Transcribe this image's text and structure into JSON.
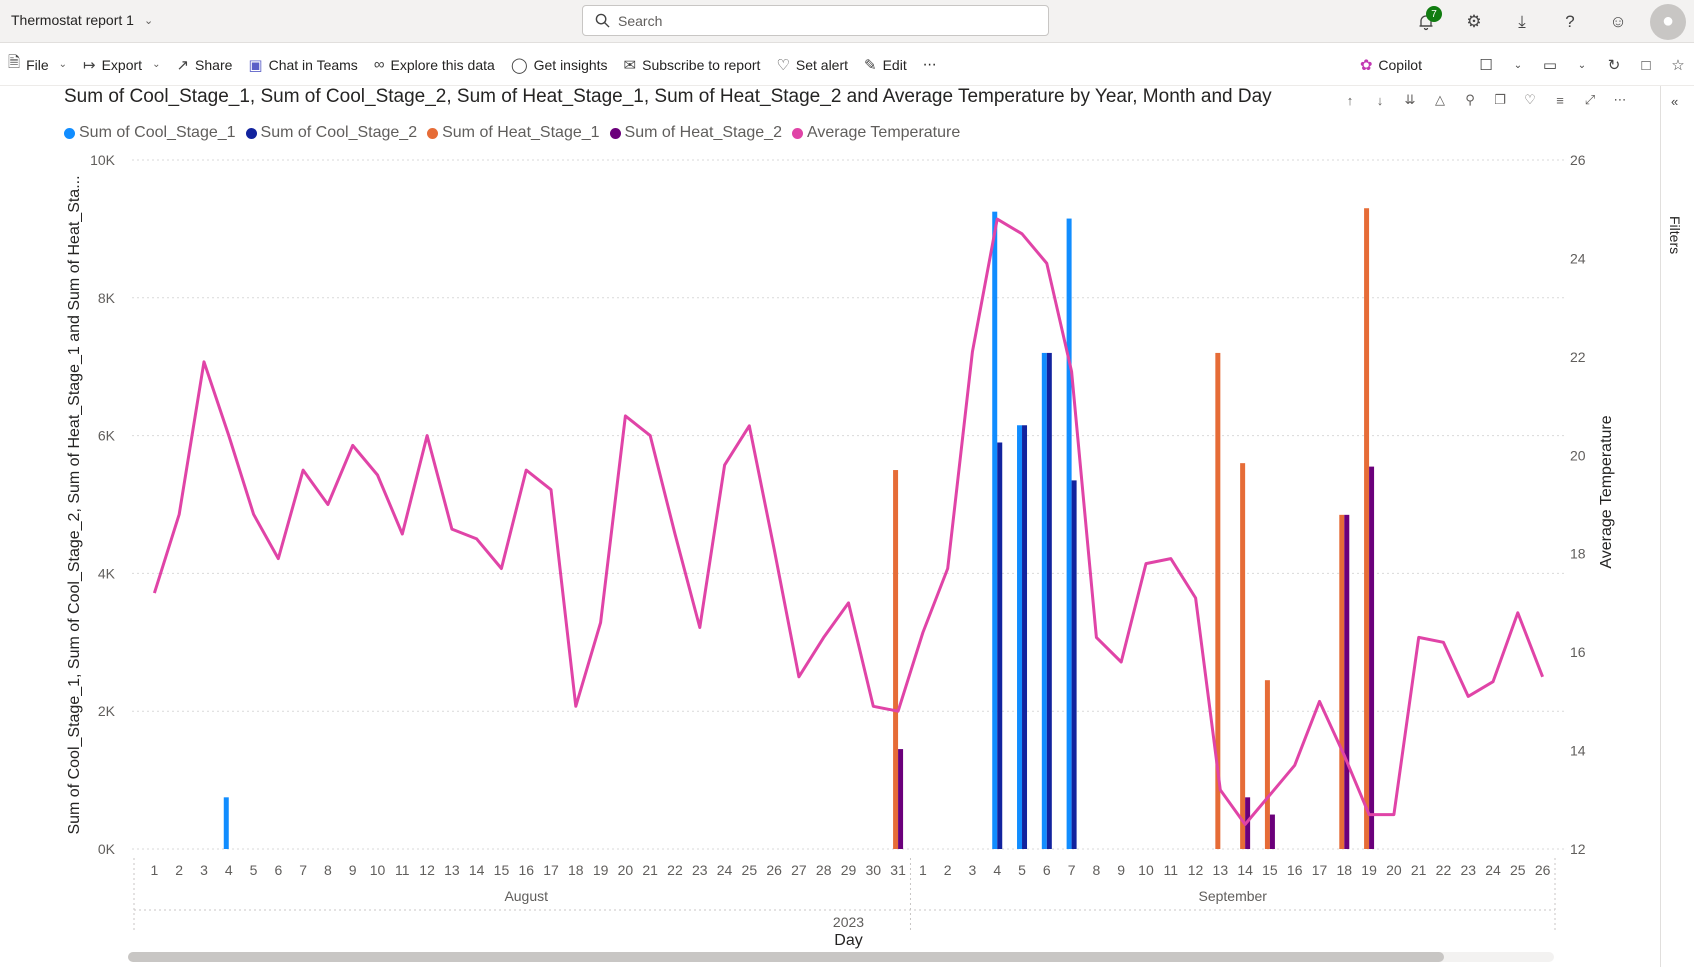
{
  "header": {
    "report_title": "Thermostat report 1",
    "search_placeholder": "Search",
    "notification_count": "7"
  },
  "toolbar": {
    "file": "File",
    "export": "Export",
    "share": "Share",
    "chat_in_teams": "Chat in Teams",
    "explore": "Explore this data",
    "insights": "Get insights",
    "subscribe": "Subscribe to report",
    "set_alert": "Set alert",
    "edit": "Edit",
    "more": "⋯",
    "copilot": "Copilot"
  },
  "visual": {
    "title": "Sum of Cool_Stage_1, Sum of Cool_Stage_2, Sum of Heat_Stage_1, Sum of Heat_Stage_2 and Average Temperature by Year, Month and Day"
  },
  "filters": {
    "label": "Filters"
  },
  "colors": {
    "cool1": "#118dff",
    "cool2": "#12239e",
    "heat1": "#e66c37",
    "heat2": "#6b007b",
    "temp": "#e044a7"
  },
  "chart_data": {
    "type": "bar",
    "legend": [
      "Sum of Cool_Stage_1",
      "Sum of Cool_Stage_2",
      "Sum of Heat_Stage_1",
      "Sum of Heat_Stage_2",
      "Average Temperature"
    ],
    "ylabel": "Sum of Cool_Stage_1, Sum of Cool_Stage_2, Sum of Heat_Stage_1 and Sum of Heat_Sta...",
    "y2label": "Average Temperature",
    "xlabel": "Day",
    "ylim": [
      0,
      10000
    ],
    "y2lim": [
      12,
      26
    ],
    "yticks": [
      "0K",
      "2K",
      "4K",
      "6K",
      "8K",
      "10K"
    ],
    "y2ticks": [
      "12",
      "14",
      "16",
      "18",
      "20",
      "22",
      "24",
      "26"
    ],
    "year": "2023",
    "months": [
      {
        "name": "August",
        "days": 31
      },
      {
        "name": "September",
        "days": 26
      }
    ],
    "days": [
      "1",
      "2",
      "3",
      "4",
      "5",
      "6",
      "7",
      "8",
      "9",
      "10",
      "11",
      "12",
      "13",
      "14",
      "15",
      "16",
      "17",
      "18",
      "19",
      "20",
      "21",
      "22",
      "23",
      "24",
      "25",
      "26",
      "27",
      "28",
      "29",
      "30",
      "31",
      "1",
      "2",
      "3",
      "4",
      "5",
      "6",
      "7",
      "8",
      "9",
      "10",
      "11",
      "12",
      "13",
      "14",
      "15",
      "16",
      "17",
      "18",
      "19",
      "20",
      "21",
      "22",
      "23",
      "24",
      "25",
      "26"
    ],
    "series": [
      {
        "name": "Sum of Cool_Stage_1",
        "key": "cool1",
        "values": [
          0,
          0,
          0,
          750,
          0,
          0,
          0,
          0,
          0,
          0,
          0,
          0,
          0,
          0,
          0,
          0,
          0,
          0,
          0,
          0,
          0,
          0,
          0,
          0,
          0,
          0,
          0,
          0,
          0,
          0,
          0,
          0,
          0,
          0,
          9250,
          6150,
          7200,
          9150,
          0,
          0,
          0,
          0,
          0,
          0,
          0,
          0,
          0,
          0,
          0,
          0,
          0,
          0,
          0,
          0,
          0,
          0,
          0
        ]
      },
      {
        "name": "Sum of Cool_Stage_2",
        "key": "cool2",
        "values": [
          0,
          0,
          0,
          0,
          0,
          0,
          0,
          0,
          0,
          0,
          0,
          0,
          0,
          0,
          0,
          0,
          0,
          0,
          0,
          0,
          0,
          0,
          0,
          0,
          0,
          0,
          0,
          0,
          0,
          0,
          0,
          0,
          0,
          0,
          5900,
          6150,
          7200,
          5350,
          0,
          0,
          0,
          0,
          0,
          0,
          0,
          0,
          0,
          0,
          0,
          0,
          0,
          0,
          0,
          0,
          0,
          0,
          0
        ]
      },
      {
        "name": "Sum of Heat_Stage_1",
        "key": "heat1",
        "values": [
          0,
          0,
          0,
          0,
          0,
          0,
          0,
          0,
          0,
          0,
          0,
          0,
          0,
          0,
          0,
          0,
          0,
          0,
          0,
          0,
          0,
          0,
          0,
          0,
          0,
          0,
          0,
          0,
          0,
          0,
          5500,
          0,
          0,
          0,
          0,
          0,
          0,
          0,
          0,
          0,
          0,
          0,
          0,
          7200,
          5600,
          2450,
          0,
          0,
          4850,
          9300,
          0,
          0,
          0,
          0,
          0,
          0,
          0
        ]
      },
      {
        "name": "Sum of Heat_Stage_2",
        "key": "heat2",
        "values": [
          0,
          0,
          0,
          0,
          0,
          0,
          0,
          0,
          0,
          0,
          0,
          0,
          0,
          0,
          0,
          0,
          0,
          0,
          0,
          0,
          0,
          0,
          0,
          0,
          0,
          0,
          0,
          0,
          0,
          0,
          1450,
          0,
          0,
          0,
          0,
          0,
          0,
          0,
          0,
          0,
          0,
          0,
          0,
          0,
          750,
          500,
          0,
          0,
          4850,
          5550,
          0,
          0,
          0,
          0,
          0,
          0,
          0
        ]
      },
      {
        "name": "Average Temperature",
        "key": "temp",
        "values": [
          17.2,
          18.8,
          21.9,
          20.4,
          18.8,
          17.9,
          19.7,
          19.0,
          20.2,
          19.6,
          18.4,
          20.4,
          18.5,
          18.3,
          17.7,
          19.7,
          19.3,
          14.9,
          16.6,
          20.8,
          20.4,
          18.4,
          16.5,
          19.8,
          20.6,
          18.1,
          15.5,
          16.3,
          17.0,
          14.9,
          14.8,
          16.4,
          17.7,
          22.1,
          24.8,
          24.5,
          23.9,
          21.7,
          16.3,
          15.8,
          17.8,
          17.9,
          17.1,
          13.2,
          12.5,
          13.1,
          13.7,
          15.0,
          13.9,
          12.7,
          12.7,
          16.3,
          16.2,
          15.1,
          15.4,
          16.8,
          15.5
        ]
      }
    ]
  }
}
